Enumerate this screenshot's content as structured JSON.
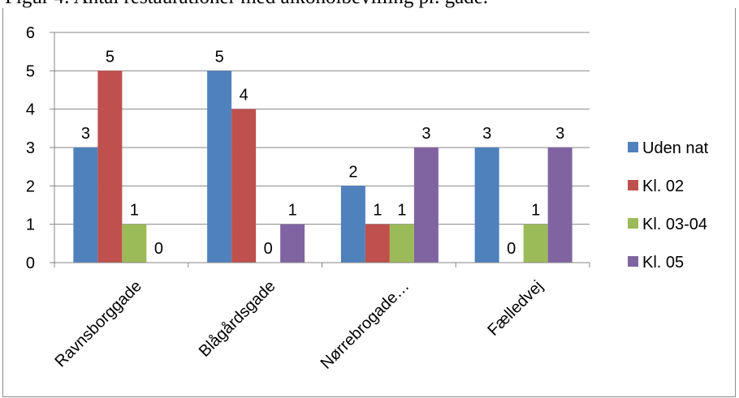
{
  "title": "Figur 4: Antal restaurationer med alkoholbevilling pr. gade.",
  "chart_data": {
    "type": "bar",
    "categories": [
      "Ravnsborggade",
      "Blågårdsgade",
      "Nørrebrogade…",
      "Fælledvej"
    ],
    "series": [
      {
        "name": "Uden nat",
        "values": [
          3,
          5,
          2,
          3
        ],
        "color": "#4f81bd"
      },
      {
        "name": "Kl. 02",
        "values": [
          5,
          4,
          1,
          0
        ],
        "color": "#c0504d"
      },
      {
        "name": "Kl. 03-04",
        "values": [
          1,
          0,
          1,
          1
        ],
        "color": "#9bbb59"
      },
      {
        "name": "Kl. 05",
        "values": [
          0,
          1,
          3,
          3
        ],
        "color": "#8064a2"
      }
    ],
    "ylim": [
      0,
      6
    ],
    "yticks": [
      0,
      1,
      2,
      3,
      4,
      5,
      6
    ],
    "grid": true,
    "legend_position": "right",
    "data_labels": true
  }
}
